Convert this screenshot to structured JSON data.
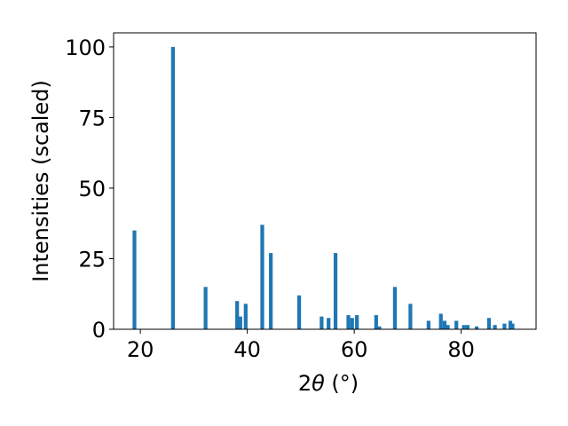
{
  "chart_data": {
    "type": "bar",
    "xlabel_prefix": "2",
    "xlabel_symbol": "θ",
    "xlabel_suffix": " (°)",
    "ylabel": "Intensities (scaled)",
    "xlim": [
      15,
      94
    ],
    "ylim": [
      0,
      105
    ],
    "grid": false,
    "bar_color": "#1f77b4",
    "x_ticks": [
      20,
      40,
      60,
      80
    ],
    "x_tick_labels": [
      "20",
      "40",
      "60",
      "80"
    ],
    "y_ticks": [
      0,
      25,
      50,
      75,
      100
    ],
    "y_tick_labels": [
      "0",
      "25",
      "50",
      "75",
      "100"
    ],
    "bar_width": 0.7,
    "peaks": [
      {
        "x": 18.9,
        "y": 35
      },
      {
        "x": 26.1,
        "y": 100
      },
      {
        "x": 32.2,
        "y": 15
      },
      {
        "x": 38.1,
        "y": 10
      },
      {
        "x": 38.7,
        "y": 4.5
      },
      {
        "x": 39.7,
        "y": 9
      },
      {
        "x": 42.8,
        "y": 37
      },
      {
        "x": 44.4,
        "y": 27
      },
      {
        "x": 49.7,
        "y": 12
      },
      {
        "x": 53.9,
        "y": 4.5
      },
      {
        "x": 55.2,
        "y": 4
      },
      {
        "x": 56.5,
        "y": 27
      },
      {
        "x": 58.9,
        "y": 5
      },
      {
        "x": 59.6,
        "y": 4
      },
      {
        "x": 60.5,
        "y": 5
      },
      {
        "x": 64.1,
        "y": 5
      },
      {
        "x": 64.7,
        "y": 1
      },
      {
        "x": 67.6,
        "y": 15
      },
      {
        "x": 70.5,
        "y": 9
      },
      {
        "x": 73.9,
        "y": 3
      },
      {
        "x": 76.2,
        "y": 5.5
      },
      {
        "x": 76.9,
        "y": 3
      },
      {
        "x": 77.5,
        "y": 1.5
      },
      {
        "x": 79.1,
        "y": 3
      },
      {
        "x": 80.5,
        "y": 1.5
      },
      {
        "x": 81.2,
        "y": 1.5
      },
      {
        "x": 82.9,
        "y": 1
      },
      {
        "x": 85.2,
        "y": 4
      },
      {
        "x": 86.3,
        "y": 1.5
      },
      {
        "x": 88.1,
        "y": 2
      },
      {
        "x": 89.2,
        "y": 3
      },
      {
        "x": 89.6,
        "y": 2
      }
    ]
  }
}
